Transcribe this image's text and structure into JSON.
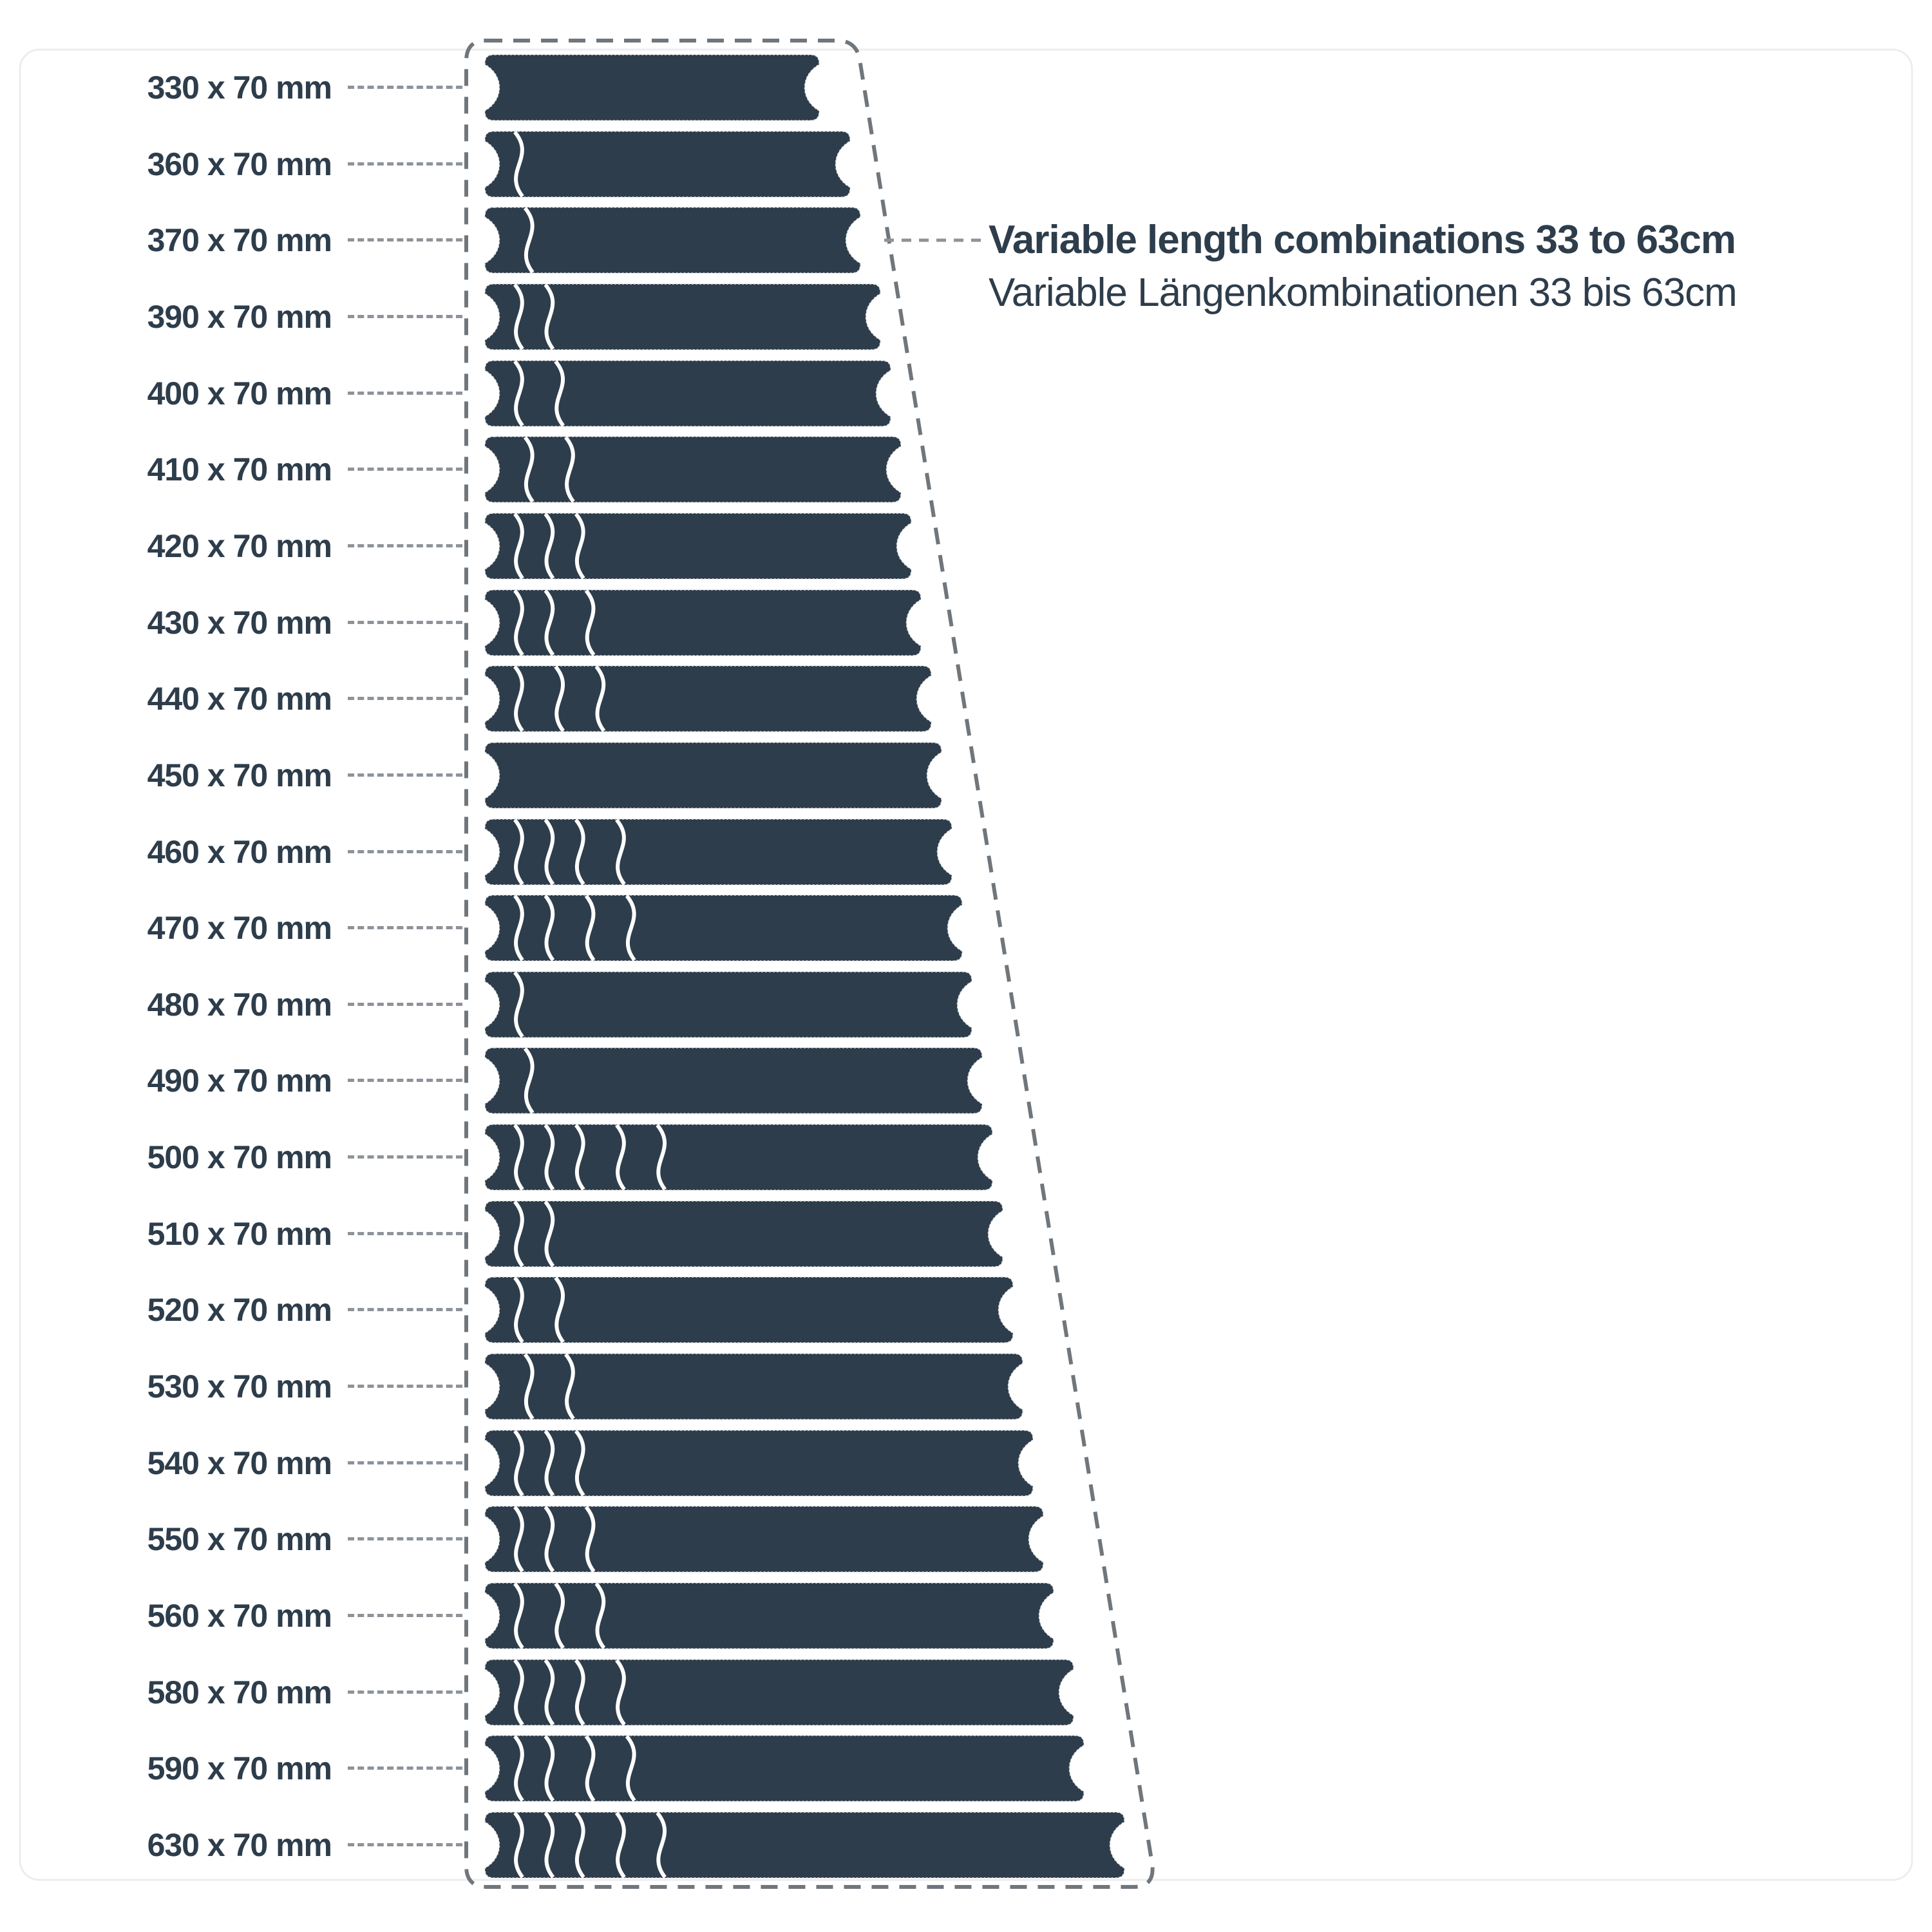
{
  "page": {
    "background": "#ffffff"
  },
  "annotation": {
    "line1": "Variable length combinations 33 to 63cm",
    "line2": "Variable Längenkombinationen 33 bis 63cm"
  },
  "diagram": {
    "strip_color": "#2e3d4b",
    "text_color": "#2e3d4b",
    "outline_color": "#6f767c",
    "leader_color": "#8d9399",
    "strip_height_mm": 70,
    "rows": [
      {
        "label": "330 x 70 mm",
        "length_mm": 330,
        "pieces_mm": [
          330
        ]
      },
      {
        "label": "360 x 70 mm",
        "length_mm": 360,
        "pieces_mm": [
          30,
          330
        ]
      },
      {
        "label": "370 x 70 mm",
        "length_mm": 370,
        "pieces_mm": [
          40,
          330
        ]
      },
      {
        "label": "390 x 70 mm",
        "length_mm": 390,
        "pieces_mm": [
          30,
          30,
          330
        ]
      },
      {
        "label": "400 x 70 mm",
        "length_mm": 400,
        "pieces_mm": [
          30,
          40,
          330
        ]
      },
      {
        "label": "410 x 70 mm",
        "length_mm": 410,
        "pieces_mm": [
          40,
          40,
          330
        ]
      },
      {
        "label": "420 x 70 mm",
        "length_mm": 420,
        "pieces_mm": [
          30,
          30,
          30,
          330
        ]
      },
      {
        "label": "430 x 70 mm",
        "length_mm": 430,
        "pieces_mm": [
          30,
          30,
          40,
          330
        ]
      },
      {
        "label": "440 x 70 mm",
        "length_mm": 440,
        "pieces_mm": [
          30,
          40,
          40,
          330
        ]
      },
      {
        "label": "450 x 70 mm",
        "length_mm": 450,
        "pieces_mm": [
          450
        ]
      },
      {
        "label": "460 x 70 mm",
        "length_mm": 460,
        "pieces_mm": [
          30,
          30,
          30,
          40,
          330
        ]
      },
      {
        "label": "470 x 70 mm",
        "length_mm": 470,
        "pieces_mm": [
          30,
          30,
          40,
          40,
          330
        ]
      },
      {
        "label": "480 x 70 mm",
        "length_mm": 480,
        "pieces_mm": [
          30,
          450
        ]
      },
      {
        "label": "490 x 70 mm",
        "length_mm": 490,
        "pieces_mm": [
          40,
          450
        ]
      },
      {
        "label": "500 x 70 mm",
        "length_mm": 500,
        "pieces_mm": [
          30,
          30,
          30,
          40,
          40,
          330
        ]
      },
      {
        "label": "510 x 70 mm",
        "length_mm": 510,
        "pieces_mm": [
          30,
          30,
          450
        ]
      },
      {
        "label": "520 x 70 mm",
        "length_mm": 520,
        "pieces_mm": [
          30,
          40,
          450
        ]
      },
      {
        "label": "530 x 70 mm",
        "length_mm": 530,
        "pieces_mm": [
          40,
          40,
          450
        ]
      },
      {
        "label": "540 x 70 mm",
        "length_mm": 540,
        "pieces_mm": [
          30,
          30,
          30,
          450
        ]
      },
      {
        "label": "550 x 70 mm",
        "length_mm": 550,
        "pieces_mm": [
          30,
          30,
          40,
          450
        ]
      },
      {
        "label": "560 x 70 mm",
        "length_mm": 560,
        "pieces_mm": [
          30,
          40,
          40,
          450
        ]
      },
      {
        "label": "580 x 70 mm",
        "length_mm": 580,
        "pieces_mm": [
          30,
          30,
          30,
          40,
          450
        ]
      },
      {
        "label": "590 x 70 mm",
        "length_mm": 590,
        "pieces_mm": [
          30,
          30,
          40,
          40,
          450
        ]
      },
      {
        "label": "630 x 70 mm",
        "length_mm": 630,
        "pieces_mm": [
          30,
          30,
          30,
          40,
          40,
          450
        ]
      }
    ]
  }
}
